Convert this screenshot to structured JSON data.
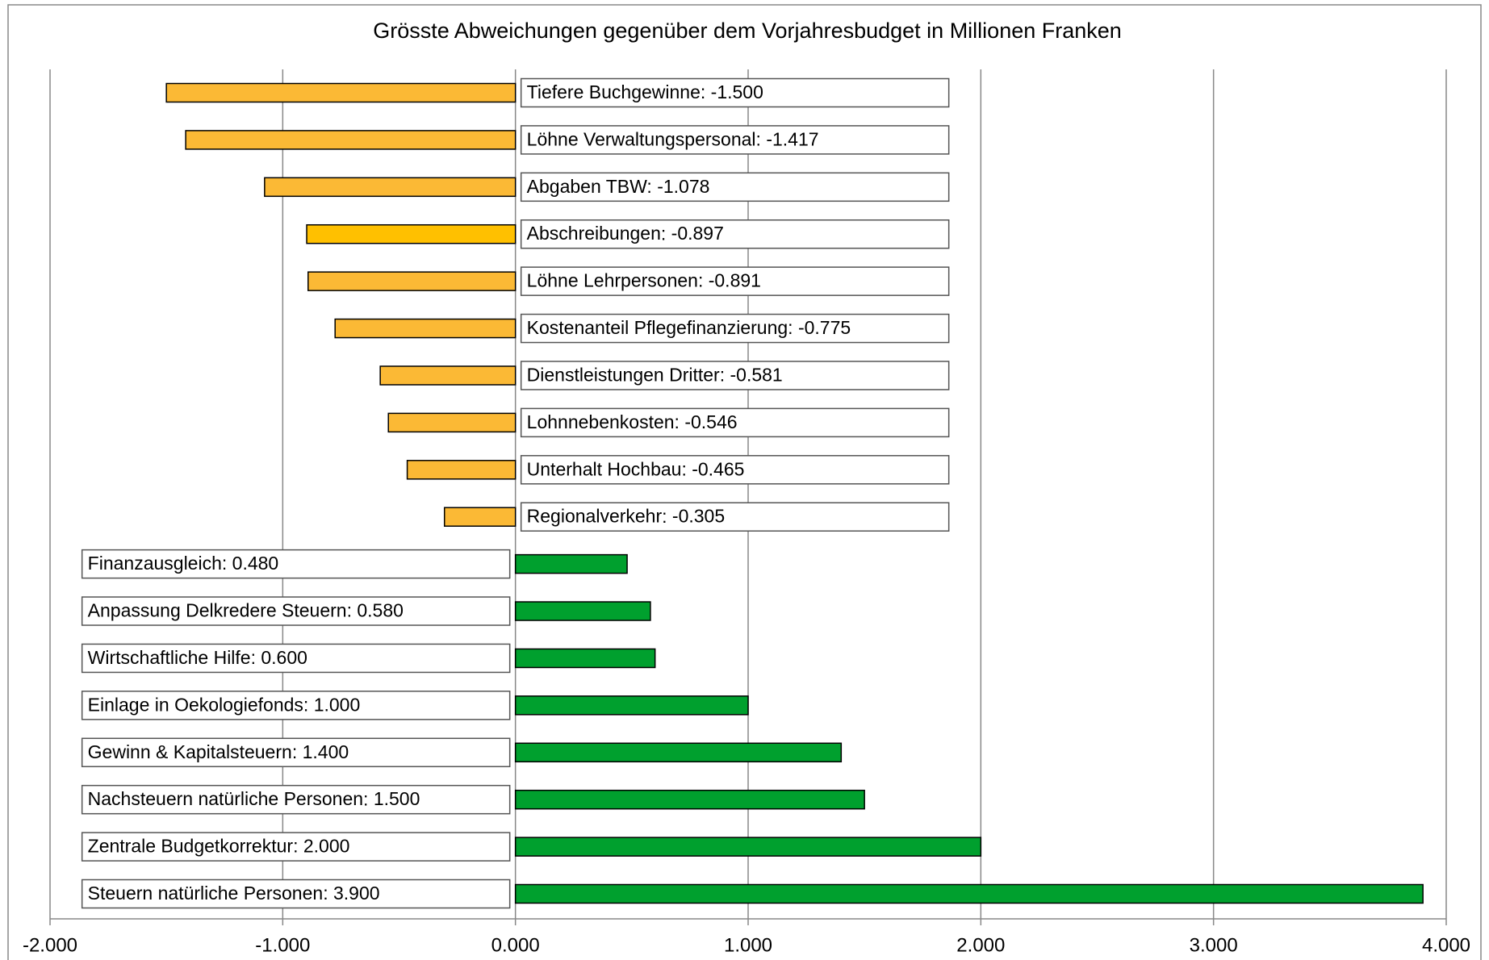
{
  "chart_data": {
    "type": "barh",
    "title": "Grösste Abweichungen gegenüber dem Vorjahresbudget in Millionen Franken",
    "categories": [
      "Tiefere Buchgewinne",
      "Löhne Verwaltungspersonal",
      "Abgaben TBW",
      "Abschreibungen",
      "Löhne Lehrpersonen",
      "Kostenanteil Pflegefinanzierung",
      "Dienstleistungen Dritter",
      "Lohnnebenkosten",
      "Unterhalt Hochbau",
      "Regionalverkehr",
      "Finanzausgleich",
      "Anpassung Delkredere Steuern",
      "Wirtschaftliche Hilfe",
      "Einlage in Oekologiefonds",
      "Gewinn & Kapitalsteuern",
      "Nachsteuern natürliche Personen",
      "Zentrale Budgetkorrektur",
      "Steuern natürliche Personen"
    ],
    "values": [
      -1.5,
      -1.417,
      -1.078,
      -0.897,
      -0.891,
      -0.775,
      -0.581,
      -0.546,
      -0.465,
      -0.305,
      0.48,
      0.58,
      0.6,
      1.0,
      1.4,
      1.5,
      2.0,
      3.9
    ],
    "value_labels": [
      "-1.500",
      "-1.417",
      "-1.078",
      "-0.897",
      "-0.891",
      "-0.775",
      "-0.581",
      "-0.546",
      "-0.465",
      "-0.305",
      "0.480",
      "0.580",
      "0.600",
      "1.000",
      "1.400",
      "1.500",
      "2.000",
      "3.900"
    ],
    "colors": [
      "#fbb935",
      "#fbb935",
      "#fbb935",
      "#ffc000",
      "#fbb935",
      "#fbb935",
      "#fbb935",
      "#fbb935",
      "#fbb935",
      "#fbb935",
      "#00a02e",
      "#00a02e",
      "#00a02e",
      "#00a02e",
      "#00a02e",
      "#00a02e",
      "#00a02e",
      "#00a02e"
    ],
    "xlim": [
      -2,
      4
    ],
    "xticks": [
      {
        "value": -2,
        "label": "-2.000"
      },
      {
        "value": -1,
        "label": "-1.000"
      },
      {
        "value": 0,
        "label": "0.000"
      },
      {
        "value": 1,
        "label": "1.000"
      },
      {
        "value": 2,
        "label": "2.000"
      },
      {
        "value": 3,
        "label": "3.000"
      },
      {
        "value": 4,
        "label": "4.000"
      }
    ],
    "grid": true
  }
}
